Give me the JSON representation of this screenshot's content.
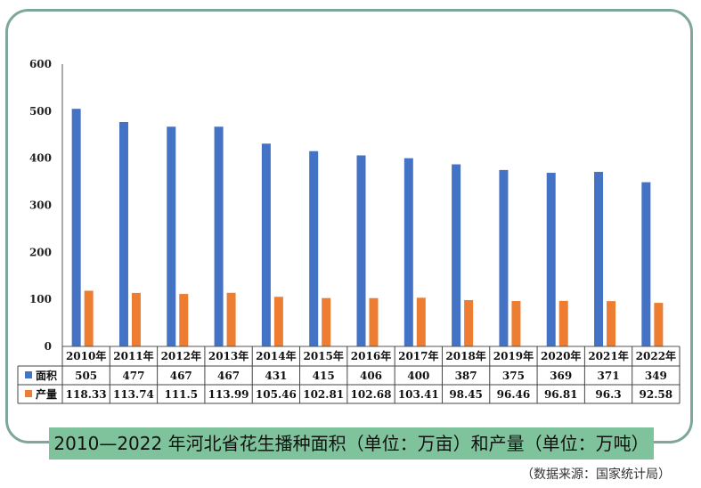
{
  "chart_data": {
    "type": "bar",
    "title": "2010—2022 年河北省花生播种面积（单位：万亩）和产量（单位：万吨）",
    "source": "（数据来源：国家统计局）",
    "categories": [
      "2010年",
      "2011年",
      "2012年",
      "2013年",
      "2014年",
      "2015年",
      "2016年",
      "2017年",
      "2018年",
      "2019年",
      "2020年",
      "2021年",
      "2022年"
    ],
    "series": [
      {
        "name": "面积",
        "color": "#4472c4",
        "values": [
          505,
          477,
          467,
          467,
          431,
          415,
          406,
          400,
          387,
          375,
          369,
          371,
          349
        ]
      },
      {
        "name": "产量",
        "color": "#ed7d31",
        "values": [
          118.33,
          113.74,
          111.5,
          113.99,
          105.46,
          102.81,
          102.68,
          103.41,
          98.45,
          96.46,
          96.81,
          96.3,
          92.58
        ]
      }
    ],
    "ylim": [
      0,
      600
    ],
    "yticks": [
      0,
      100,
      200,
      300,
      400,
      500,
      600
    ],
    "grid": false,
    "legend": "data-table"
  }
}
